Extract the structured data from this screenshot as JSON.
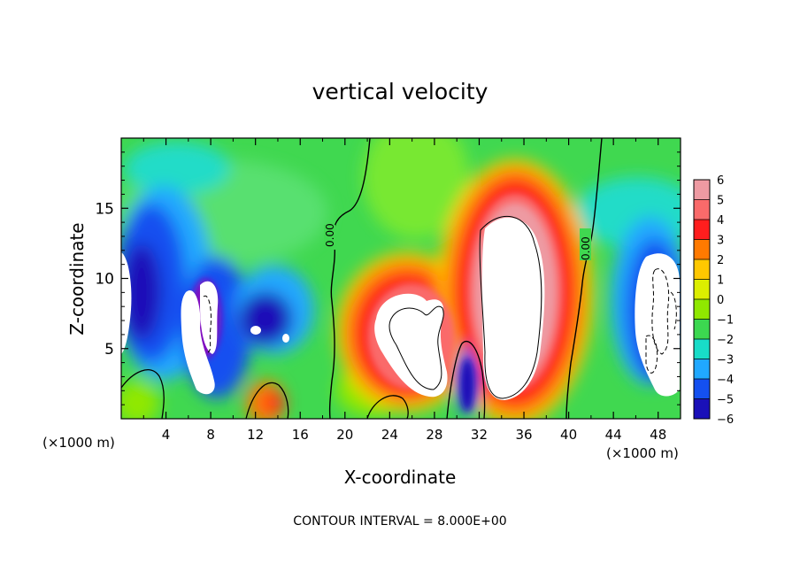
{
  "chart_data": {
    "type": "heatmap",
    "title": "vertical velocity",
    "xlabel": "X-coordinate",
    "ylabel": "Z-coordinate",
    "x_unit_left": "(×1000 m)",
    "x_unit_right": "(×1000 m)",
    "xlim": [
      0,
      50
    ],
    "ylim": [
      0,
      20
    ],
    "x_ticks": [
      "4",
      "8",
      "12",
      "16",
      "20",
      "24",
      "28",
      "32",
      "36",
      "40",
      "44",
      "48"
    ],
    "y_ticks": [
      "5",
      "10",
      "15"
    ],
    "x_tick_values": [
      4,
      8,
      12,
      16,
      20,
      24,
      28,
      32,
      36,
      40,
      44,
      48
    ],
    "y_tick_values": [
      5,
      10,
      15
    ],
    "colorbar": {
      "labels": [
        "6",
        "5",
        "4",
        "3",
        "2",
        "1",
        "0",
        "−1",
        "−2",
        "−3",
        "−4",
        "−5",
        "−6"
      ],
      "values": [
        6,
        5,
        4,
        3,
        2,
        1,
        0,
        -1,
        -2,
        -3,
        -4,
        -5,
        -6
      ],
      "colors": [
        "#ee9aa2",
        "#fa6a6a",
        "#ff1e1e",
        "#ff7a00",
        "#ffc800",
        "#dcee00",
        "#90e800",
        "#3cd850",
        "#18dcc8",
        "#20a8ff",
        "#1450f0",
        "#1a10b8",
        "#8010c0"
      ]
    },
    "contour_labels": [
      "0.00",
      "0.00"
    ],
    "features": [
      {
        "type": "updraft",
        "x_center": 34.5,
        "z_center": 8,
        "value": "> 6"
      },
      {
        "type": "updraft",
        "x_center": 27,
        "z_center": 5,
        "value": "> 6"
      },
      {
        "type": "downdraft",
        "x_center": 7,
        "z_center": 7,
        "value": "< -6"
      },
      {
        "type": "downdraft",
        "x_center": 47,
        "z_center": 7,
        "value": "< -6"
      },
      {
        "type": "downdraft",
        "x_center": 0.5,
        "z_center": 9,
        "value": "< -6"
      }
    ],
    "footer": "CONTOUR INTERVAL = 8.000E+00"
  }
}
